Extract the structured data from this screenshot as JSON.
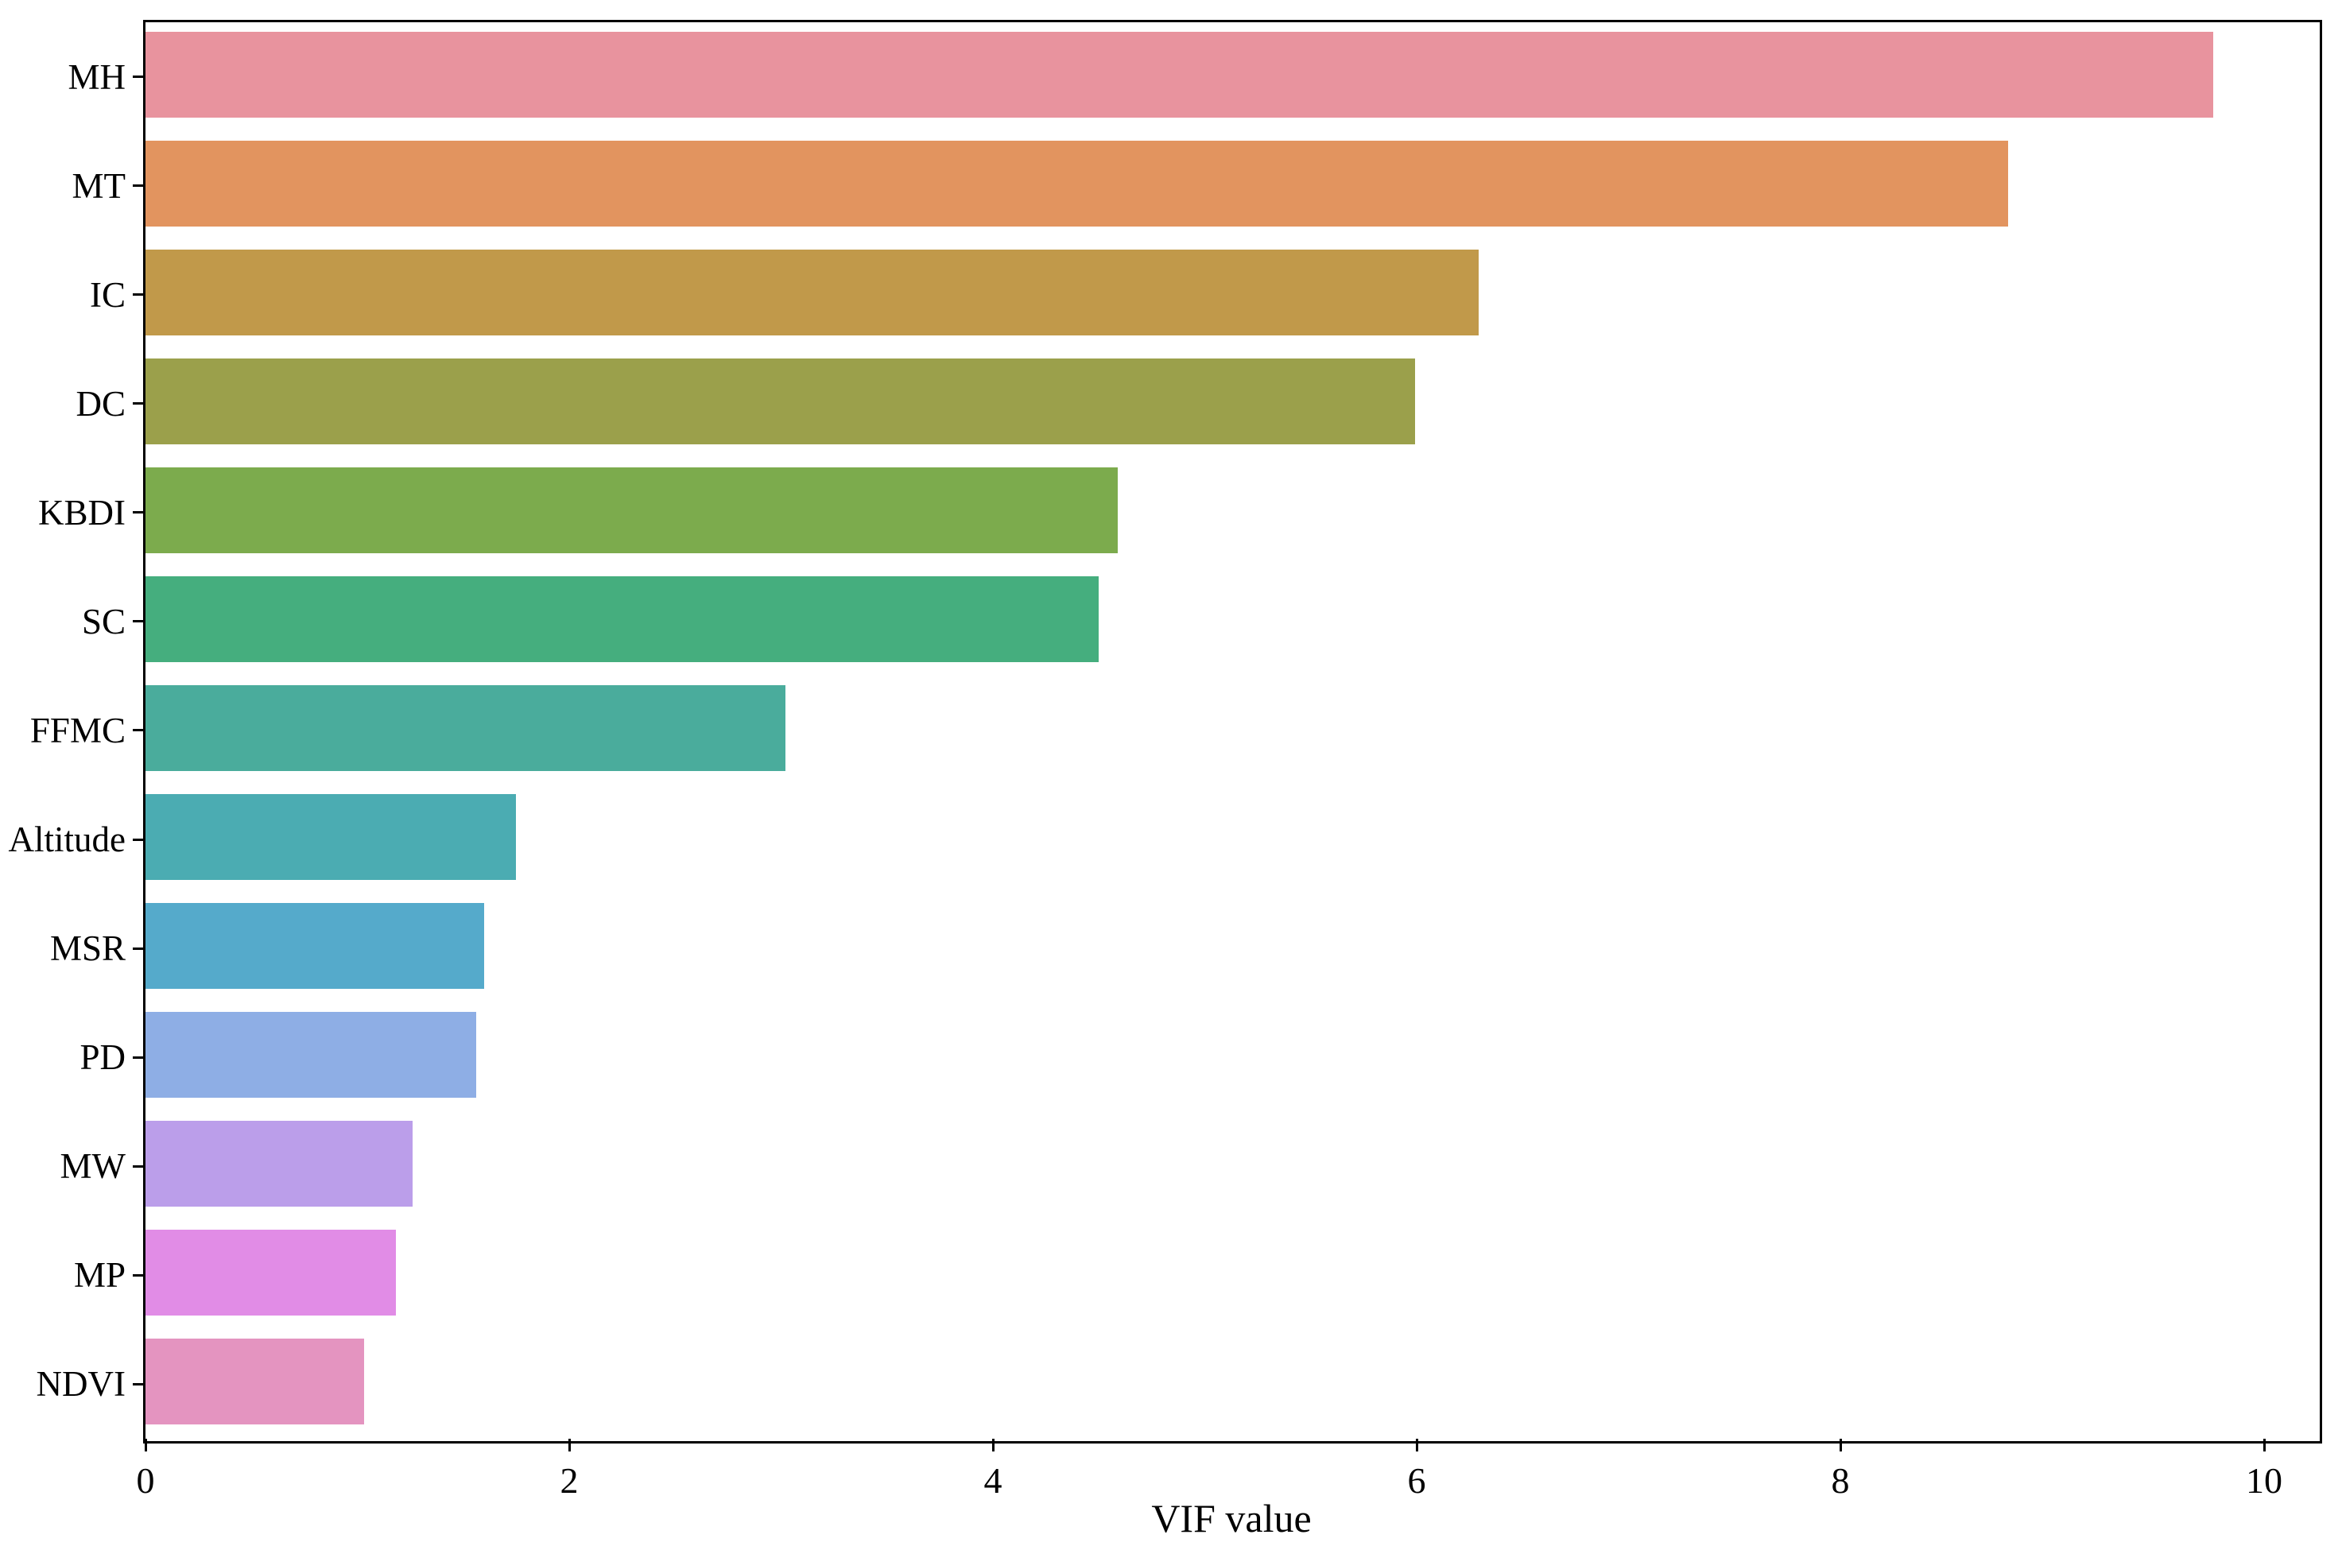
{
  "chart_data": {
    "type": "bar",
    "orientation": "horizontal",
    "title": "",
    "xlabel": "VIF value",
    "ylabel": "",
    "categories": [
      "MH",
      "MT",
      "IC",
      "DC",
      "KBDI",
      "SC",
      "FFMC",
      "Altitude",
      "MSR",
      "PD",
      "MW",
      "MP",
      "NDVI"
    ],
    "values": [
      9.76,
      8.79,
      6.29,
      5.99,
      4.59,
      4.5,
      3.02,
      1.75,
      1.6,
      1.56,
      1.26,
      1.18,
      1.03
    ],
    "colors": [
      "#E8939E",
      "#E2945F",
      "#C1994A",
      "#9BA04B",
      "#7CAB4D",
      "#45AE7E",
      "#4AAC9C",
      "#4BACB2",
      "#55AACB",
      "#8EAEE5",
      "#BB9EEA",
      "#E18CE6",
      "#E494C0"
    ],
    "x_ticks": [
      "0",
      "2",
      "4",
      "6",
      "8",
      "10"
    ],
    "x_tick_values": [
      0,
      2,
      4,
      6,
      8,
      10
    ],
    "xlim": [
      0,
      10.25
    ],
    "grid": false,
    "legend": null,
    "axis_color": "#000000",
    "plot_background": "#ffffff"
  }
}
